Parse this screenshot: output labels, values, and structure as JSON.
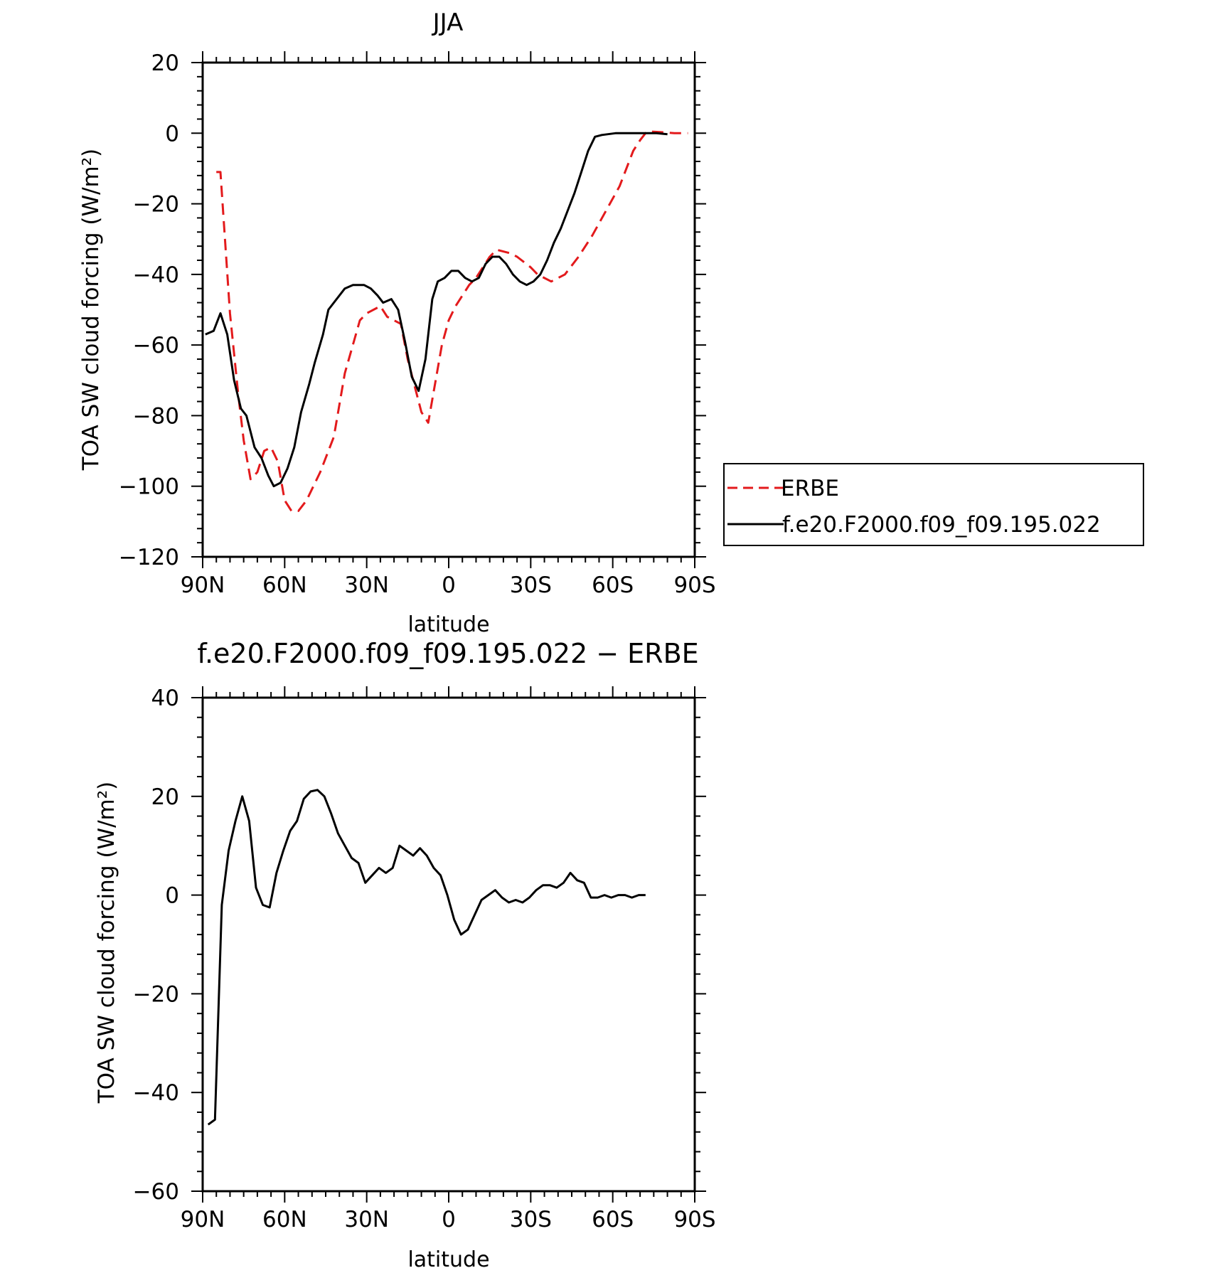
{
  "chart_data": [
    {
      "type": "line",
      "title": "JJA",
      "xlabel": "latitude",
      "ylabel": "TOA SW cloud forcing (W/m²)",
      "xlim": [
        90,
        -90
      ],
      "ylim": [
        -120,
        20
      ],
      "xticks": [
        90,
        60,
        30,
        0,
        -30,
        -60,
        -90
      ],
      "xtick_labels": [
        "90N",
        "60N",
        "30N",
        "0",
        "30S",
        "60S",
        "90S"
      ],
      "yticks": [
        20,
        0,
        -20,
        -40,
        -60,
        -80,
        -100,
        -120
      ],
      "ytick_labels": [
        "20",
        "0",
        "−20",
        "−40",
        "−60",
        "−80",
        "−100",
        "−120"
      ],
      "legend": "right",
      "series": [
        {
          "name": "ERBE",
          "color": "#e31a1c",
          "dash": true,
          "points": [
            [
              85,
              -11
            ],
            [
              83.5,
              -11
            ],
            [
              80,
              -51
            ],
            [
              77,
              -74
            ],
            [
              75,
              -87
            ],
            [
              72.5,
              -98
            ],
            [
              70,
              -96
            ],
            [
              67.5,
              -90
            ],
            [
              65,
              -89
            ],
            [
              62.5,
              -93
            ],
            [
              60,
              -104
            ],
            [
              57.5,
              -107
            ],
            [
              55,
              -107
            ],
            [
              52,
              -104
            ],
            [
              47,
              -96
            ],
            [
              42,
              -86
            ],
            [
              38,
              -68
            ],
            [
              32.5,
              -53
            ],
            [
              30,
              -51
            ],
            [
              25,
              -49
            ],
            [
              22.5,
              -52
            ],
            [
              17.5,
              -54
            ],
            [
              15,
              -64
            ],
            [
              10,
              -79
            ],
            [
              7.5,
              -82
            ],
            [
              2.5,
              -60
            ],
            [
              0,
              -53
            ],
            [
              -2.5,
              -49
            ],
            [
              -7.5,
              -43
            ],
            [
              -10,
              -41
            ],
            [
              -15,
              -35
            ],
            [
              -17.5,
              -33
            ],
            [
              -22.5,
              -34
            ],
            [
              -25,
              -35
            ],
            [
              -30,
              -38
            ],
            [
              -32.5,
              -40
            ],
            [
              -37.5,
              -42
            ],
            [
              -42.5,
              -40
            ],
            [
              -47.5,
              -35
            ],
            [
              -52.5,
              -29
            ],
            [
              -57.5,
              -22
            ],
            [
              -62.5,
              -15
            ],
            [
              -65,
              -10
            ],
            [
              -67.5,
              -5
            ],
            [
              -70,
              -2
            ],
            [
              -72.5,
              0.5
            ],
            [
              -77.5,
              0.3
            ],
            [
              -82.5,
              0
            ],
            [
              -87.5,
              0
            ]
          ]
        },
        {
          "name": "f.e20.F2000.f09_f09.195.022",
          "color": "#000000",
          "dash": false,
          "points": [
            [
              89,
              -57
            ],
            [
              86,
              -56
            ],
            [
              83.5,
              -51
            ],
            [
              81,
              -57
            ],
            [
              78.5,
              -70
            ],
            [
              76,
              -78
            ],
            [
              74,
              -80
            ],
            [
              71,
              -89
            ],
            [
              68.5,
              -92
            ],
            [
              66,
              -97
            ],
            [
              64,
              -100
            ],
            [
              61.5,
              -99
            ],
            [
              59,
              -95
            ],
            [
              56.5,
              -89
            ],
            [
              54,
              -79
            ],
            [
              51,
              -71
            ],
            [
              49,
              -65
            ],
            [
              46,
              -57
            ],
            [
              44,
              -50
            ],
            [
              38,
              -44
            ],
            [
              35,
              -43
            ],
            [
              31,
              -43
            ],
            [
              28.5,
              -44
            ],
            [
              26,
              -46
            ],
            [
              24,
              -48
            ],
            [
              21,
              -47
            ],
            [
              18.5,
              -50
            ],
            [
              16,
              -59
            ],
            [
              13.5,
              -69
            ],
            [
              11,
              -73
            ],
            [
              8.5,
              -64
            ],
            [
              6,
              -47
            ],
            [
              4,
              -42
            ],
            [
              1.5,
              -41
            ],
            [
              -1,
              -39
            ],
            [
              -3.5,
              -39
            ],
            [
              -6,
              -41
            ],
            [
              -8.5,
              -42
            ],
            [
              -11,
              -41
            ],
            [
              -13.5,
              -37
            ],
            [
              -16,
              -35
            ],
            [
              -18.5,
              -35
            ],
            [
              -21,
              -37
            ],
            [
              -23.5,
              -40
            ],
            [
              -26,
              -42
            ],
            [
              -28.5,
              -43
            ],
            [
              -31,
              -42
            ],
            [
              -33.5,
              -40
            ],
            [
              -36,
              -36
            ],
            [
              -38.5,
              -31
            ],
            [
              -41,
              -27
            ],
            [
              -43.5,
              -22
            ],
            [
              -46,
              -17
            ],
            [
              -48.5,
              -11
            ],
            [
              -51,
              -5
            ],
            [
              -53.5,
              -1
            ],
            [
              -56,
              -0.5
            ],
            [
              -61,
              0
            ],
            [
              -66,
              0
            ],
            [
              -71,
              0
            ],
            [
              -76,
              0
            ],
            [
              -80,
              -0.3
            ]
          ]
        }
      ]
    },
    {
      "type": "line",
      "title": "f.e20.F2000.f09_f09.195.022 − ERBE",
      "xlabel": "latitude",
      "ylabel": "TOA SW cloud forcing (W/m²)",
      "xlim": [
        90,
        -90
      ],
      "ylim": [
        -60,
        40
      ],
      "xticks": [
        90,
        60,
        30,
        0,
        -30,
        -60,
        -90
      ],
      "xtick_labels": [
        "90N",
        "60N",
        "30N",
        "0",
        "30S",
        "60S",
        "90S"
      ],
      "yticks": [
        40,
        20,
        0,
        -20,
        -40,
        -60
      ],
      "ytick_labels": [
        "40",
        "20",
        "0",
        "−20",
        "−40",
        "−60"
      ],
      "series": [
        {
          "color": "#000000",
          "dash": false,
          "points": [
            [
              88,
              -46.5
            ],
            [
              85.5,
              -45.5
            ],
            [
              83,
              -2
            ],
            [
              80.5,
              9
            ],
            [
              78,
              15
            ],
            [
              75.5,
              20
            ],
            [
              73,
              15
            ],
            [
              70.5,
              1.5
            ],
            [
              68,
              -2
            ],
            [
              65.5,
              -2.5
            ],
            [
              63,
              4.5
            ],
            [
              60.5,
              9
            ],
            [
              58,
              13
            ],
            [
              55.5,
              15
            ],
            [
              53,
              19.5
            ],
            [
              50.5,
              21
            ],
            [
              48,
              21.3
            ],
            [
              45.5,
              20
            ],
            [
              43,
              16.5
            ],
            [
              40.5,
              12.5
            ],
            [
              38,
              10
            ],
            [
              35.5,
              7.5
            ],
            [
              33,
              6.5
            ],
            [
              30.5,
              2.5
            ],
            [
              28,
              4
            ],
            [
              25.5,
              5.5
            ],
            [
              23,
              4.5
            ],
            [
              20.5,
              5.5
            ],
            [
              18,
              10
            ],
            [
              15.5,
              9
            ],
            [
              13,
              8
            ],
            [
              10.5,
              9.5
            ],
            [
              8,
              8
            ],
            [
              5.5,
              5.5
            ],
            [
              3,
              4
            ],
            [
              0.5,
              0
            ],
            [
              -2,
              -5
            ],
            [
              -4.5,
              -8
            ],
            [
              -7,
              -7
            ],
            [
              -9.5,
              -4
            ],
            [
              -12,
              -1
            ],
            [
              -14.5,
              0
            ],
            [
              -17,
              1
            ],
            [
              -19.5,
              -0.5
            ],
            [
              -22,
              -1.5
            ],
            [
              -24.5,
              -1
            ],
            [
              -27,
              -1.5
            ],
            [
              -29.5,
              -0.5
            ],
            [
              -32,
              1
            ],
            [
              -34.5,
              2
            ],
            [
              -37,
              2
            ],
            [
              -39.5,
              1.5
            ],
            [
              -42,
              2.5
            ],
            [
              -44.5,
              4.5
            ],
            [
              -47,
              3
            ],
            [
              -49.5,
              2.5
            ],
            [
              -52,
              -0.5
            ],
            [
              -54.5,
              -0.5
            ],
            [
              -57,
              0
            ],
            [
              -59.5,
              -0.5
            ],
            [
              -62,
              0
            ],
            [
              -64.5,
              0
            ],
            [
              -67,
              -0.5
            ],
            [
              -69.5,
              0
            ],
            [
              -72,
              0
            ]
          ]
        }
      ]
    }
  ]
}
